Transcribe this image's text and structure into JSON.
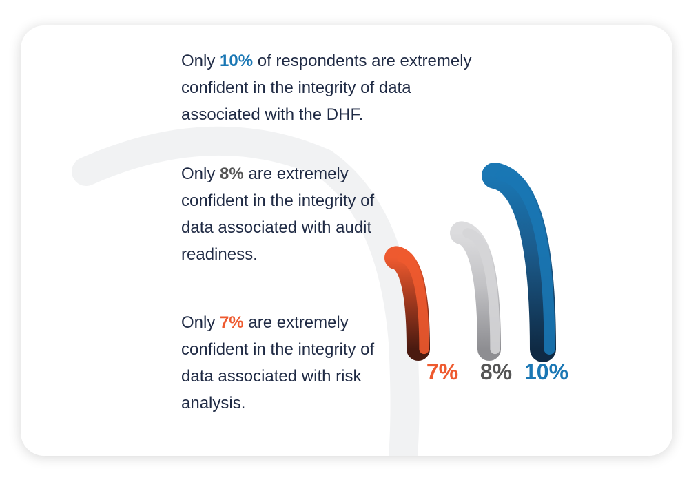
{
  "statements": [
    {
      "prefix": "Only ",
      "value": "10%",
      "suffix": " of respondents are extremely confident in the integrity of data associated with the DHF.",
      "color": "#1a77b4"
    },
    {
      "prefix": "Only ",
      "value": "8%",
      "suffix": " are extremely confident in the integrity of data associated with audit readiness.",
      "color": "#555555"
    },
    {
      "prefix": "Only ",
      "value": "7%",
      "suffix": " are extremely confident in the integrity of data associated with risk analysis.",
      "color": "#ee5a2f"
    }
  ],
  "chart_data": {
    "type": "bar",
    "style": "curved arcs",
    "categories": [
      "risk analysis",
      "audit readiness",
      "DHF"
    ],
    "values": [
      7,
      8,
      10
    ],
    "labels": [
      "7%",
      "8%",
      "10%"
    ],
    "colors": [
      "#ee5a2f",
      "#d5d5d7",
      "#1a77b4"
    ],
    "label_colors": [
      "#ee5a2f",
      "#555555",
      "#1a77b4"
    ]
  }
}
